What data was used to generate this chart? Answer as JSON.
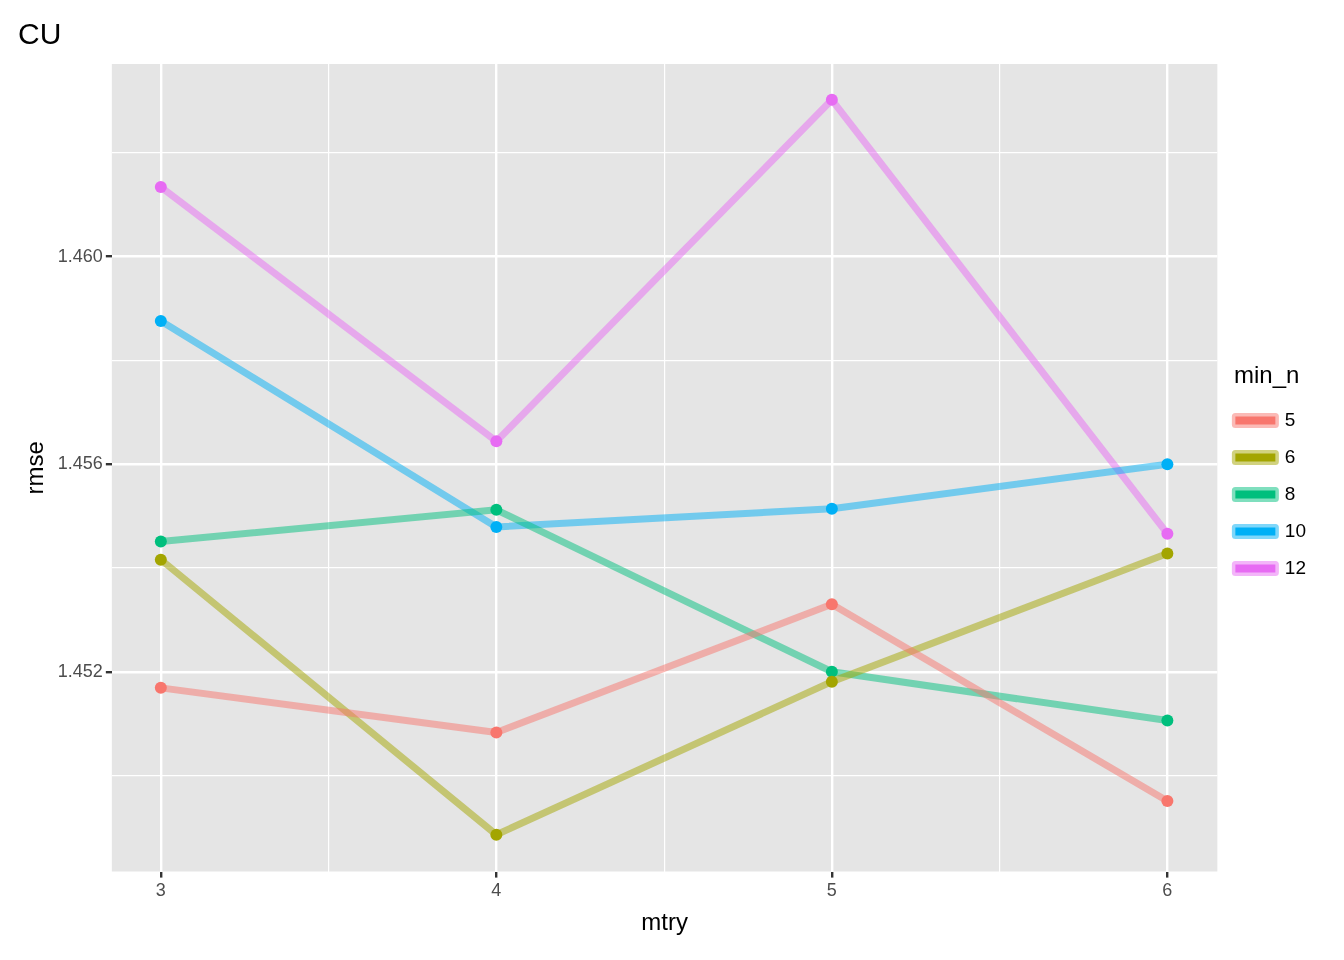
{
  "chart_data": {
    "type": "line",
    "title": "CU",
    "xlabel": "mtry",
    "ylabel": "rmse",
    "legend_title": "min_n",
    "x": [
      3,
      4,
      5,
      6
    ],
    "series": [
      {
        "name": "5",
        "color": "#f8766d",
        "values": [
          1.45169,
          1.45083,
          1.4533,
          1.44951
        ]
      },
      {
        "name": "6",
        "color": "#a3a500",
        "values": [
          1.45416,
          1.44886,
          1.45181,
          1.45428
        ]
      },
      {
        "name": "8",
        "color": "#00bf7d",
        "values": [
          1.45451,
          1.45512,
          1.452,
          1.45106
        ]
      },
      {
        "name": "10",
        "color": "#00b0f6",
        "values": [
          1.45876,
          1.45479,
          1.45514,
          1.456
        ]
      },
      {
        "name": "12",
        "color": "#e76bf3",
        "values": [
          1.46134,
          1.45644,
          1.46302,
          1.45466
        ]
      }
    ],
    "xlim": [
      2.854,
      6.149
    ],
    "ylim": [
      1.44815,
      1.46371
    ],
    "xticks": [
      3,
      {
        "value": 3.5,
        "label": null
      },
      4,
      {
        "value": 4.5,
        "label": null
      },
      5,
      {
        "value": 5.5,
        "label": null
      },
      6
    ],
    "yticks": [
      {
        "value": 1.45,
        "label": null
      },
      1.452,
      {
        "value": 1.454,
        "label": null
      },
      1.456,
      {
        "value": 1.458,
        "label": null
      },
      {
        "value": 1.46,
        "label": "1.460"
      },
      {
        "value": 1.462,
        "label": null
      }
    ],
    "grid": true,
    "legend": "right",
    "marker": "circle",
    "line_style": "solid"
  }
}
